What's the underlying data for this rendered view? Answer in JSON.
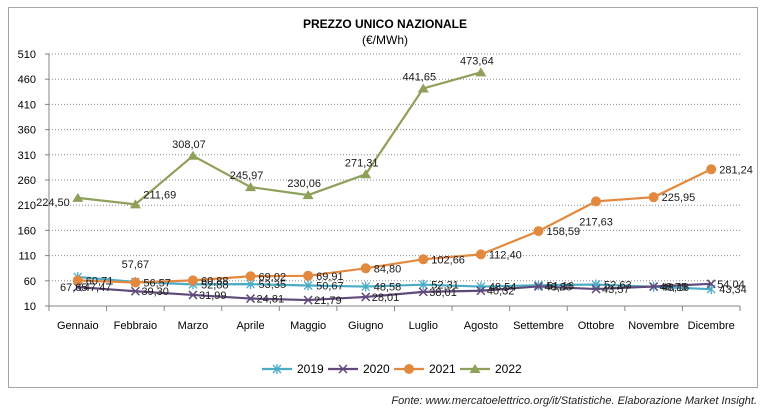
{
  "chart_data": {
    "type": "line",
    "title": "PREZZO UNICO NAZIONALE",
    "subtitle": "(€/MWh)",
    "xlabel": "",
    "ylabel": "",
    "ylim": [
      10,
      510
    ],
    "yticks": [
      510,
      460,
      410,
      360,
      310,
      260,
      210,
      160,
      110,
      60,
      10
    ],
    "grid": true,
    "legend_position": "bottom",
    "categories": [
      "Gennaio",
      "Febbraio",
      "Marzo",
      "Aprile",
      "Maggio",
      "Giugno",
      "Luglio",
      "Agosto",
      "Settembre",
      "Ottobre",
      "Novembre",
      "Dicembre"
    ],
    "series": [
      {
        "name": "2019",
        "color": "#4bacc6",
        "marker": "star",
        "values": [
          67.65,
          57.67,
          52.88,
          53.35,
          50.67,
          48.58,
          52.31,
          48.54,
          51.16,
          52.63,
          48.16,
          43.34
        ],
        "labels": [
          "67,65",
          "57,67",
          "52,88",
          "53,35",
          "50,67",
          "48,58",
          "52,31",
          "48,54",
          "51,16",
          "52,63",
          "48,16",
          "43,34"
        ]
      },
      {
        "name": "2020",
        "color": "#604a7b",
        "marker": "x",
        "values": [
          47.47,
          39.3,
          31.99,
          24.81,
          21.79,
          28.01,
          38.01,
          40.32,
          48.8,
          43.57,
          48.75,
          54.04
        ],
        "labels": [
          "47,47",
          "39,30",
          "31,99",
          "24,81",
          "21,79",
          "28,01",
          "38,01",
          "40,32",
          "48,80",
          "43,57",
          "48,75",
          "54,04"
        ]
      },
      {
        "name": "2021",
        "color": "#e3893f",
        "marker": "circle",
        "values": [
          60.71,
          56.57,
          60.88,
          69.02,
          69.91,
          84.8,
          102.66,
          112.4,
          158.59,
          217.63,
          225.95,
          281.24
        ],
        "labels": [
          "60,71",
          "56,57",
          "60,88",
          "69,02",
          "69,91",
          "84,80",
          "102,66",
          "112,40",
          "158,59",
          "217,63",
          "225,95",
          "281,24"
        ]
      },
      {
        "name": "2022",
        "color": "#8ea05a",
        "marker": "triangle",
        "values": [
          224.5,
          211.69,
          308.07,
          245.97,
          230.06,
          271.31,
          441.65,
          473.64,
          null,
          null,
          null,
          null
        ],
        "labels": [
          "224,50",
          "211,69",
          "308,07",
          "245,97",
          "230,06",
          "271,31",
          "441,65",
          "473,64",
          null,
          null,
          null,
          null
        ]
      }
    ]
  },
  "source": "Fonte: www.mercatoelettrico.org/it/Statistiche. Elaborazione Market Insight."
}
